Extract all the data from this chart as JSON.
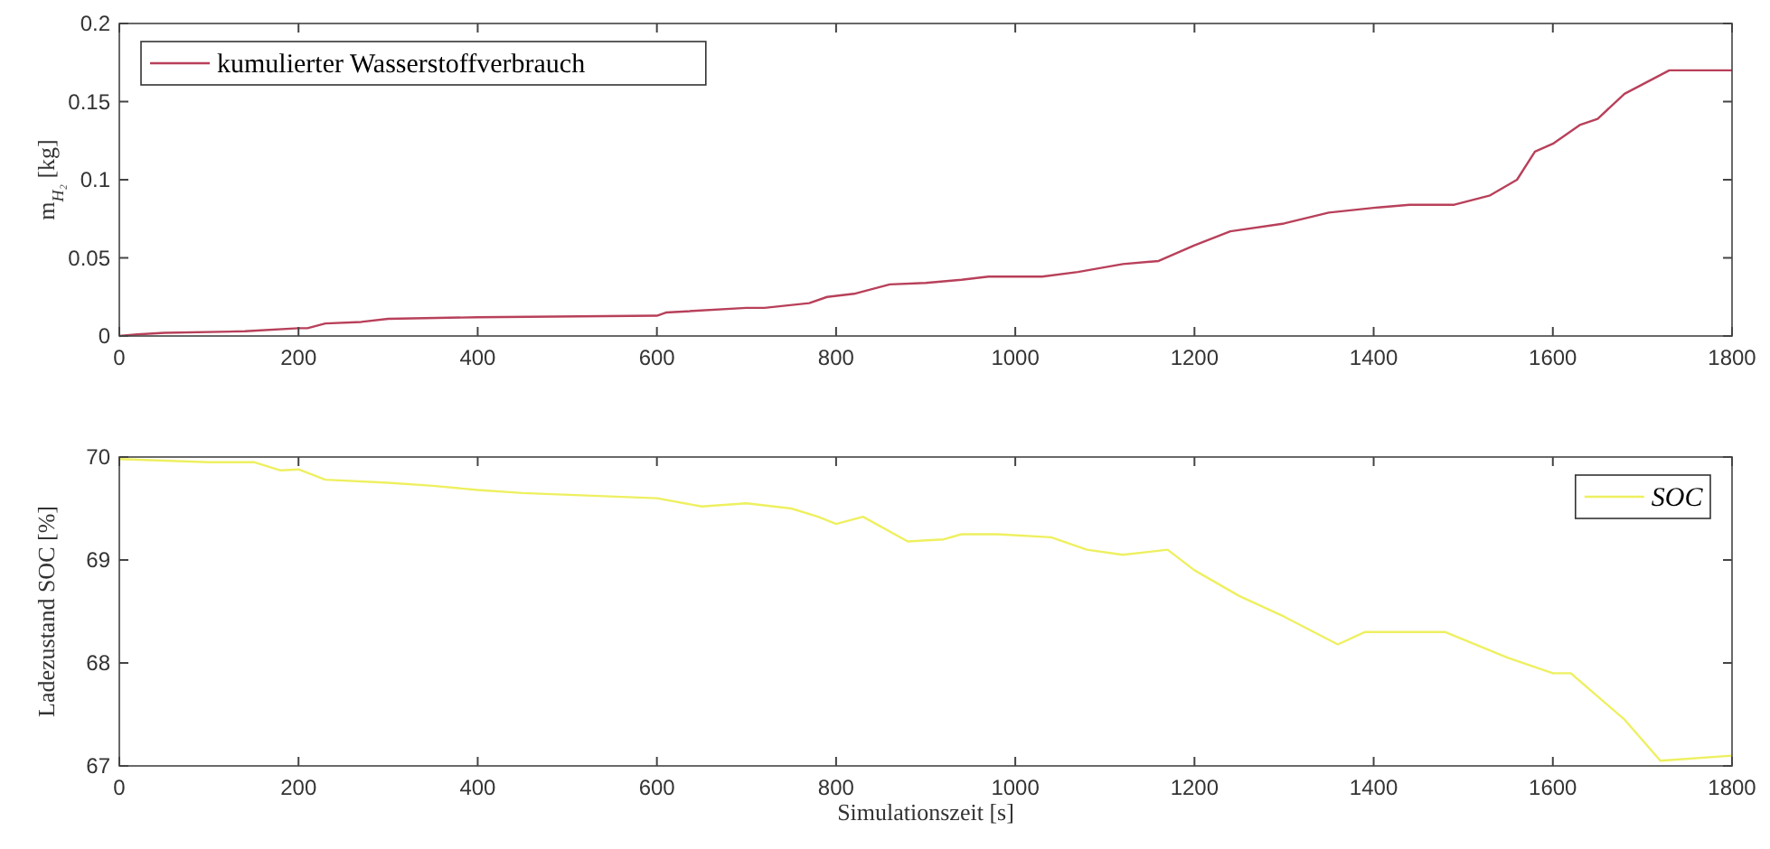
{
  "chart_data": [
    {
      "type": "line",
      "ylabel": "m$_{H₂}$ [kg]",
      "xlim": [
        0,
        1800
      ],
      "xticks": [
        0,
        200,
        400,
        600,
        800,
        1000,
        1200,
        1400,
        1600,
        1800
      ],
      "ylim": [
        0,
        0.2
      ],
      "yticks": [
        0,
        0.05,
        0.1,
        0.15,
        0.2
      ],
      "legend": "top left",
      "series": [
        {
          "name": "kumulierter Wasserstoffverbrauch",
          "color": "#b8405a",
          "x": [
            0,
            20,
            50,
            140,
            200,
            210,
            230,
            270,
            300,
            400,
            600,
            610,
            700,
            720,
            770,
            790,
            820,
            860,
            900,
            940,
            970,
            1030,
            1070,
            1120,
            1160,
            1200,
            1240,
            1300,
            1350,
            1400,
            1440,
            1490,
            1530,
            1560,
            1580,
            1600,
            1630,
            1650,
            1680,
            1730,
            1800
          ],
          "values": [
            0,
            0.001,
            0.002,
            0.003,
            0.005,
            0.005,
            0.008,
            0.009,
            0.011,
            0.012,
            0.013,
            0.015,
            0.018,
            0.018,
            0.021,
            0.025,
            0.027,
            0.033,
            0.034,
            0.036,
            0.038,
            0.038,
            0.041,
            0.046,
            0.048,
            0.058,
            0.067,
            0.072,
            0.079,
            0.082,
            0.084,
            0.084,
            0.09,
            0.1,
            0.118,
            0.123,
            0.135,
            0.139,
            0.155,
            0.17,
            0.17
          ]
        }
      ]
    },
    {
      "type": "line",
      "xlabel": "Simulationszeit [s]",
      "ylabel": "Ladezustand SOC [%]",
      "xlim": [
        0,
        1800
      ],
      "xticks": [
        0,
        200,
        400,
        600,
        800,
        1000,
        1200,
        1400,
        1600,
        1800
      ],
      "ylim": [
        67,
        70
      ],
      "yticks": [
        67,
        68,
        69,
        70
      ],
      "legend": "top right",
      "series": [
        {
          "name": "SOC",
          "color": "#eef060",
          "x": [
            0,
            100,
            150,
            180,
            200,
            230,
            300,
            350,
            400,
            450,
            600,
            650,
            700,
            750,
            780,
            800,
            830,
            880,
            920,
            940,
            980,
            1040,
            1080,
            1120,
            1170,
            1200,
            1250,
            1300,
            1360,
            1390,
            1480,
            1550,
            1600,
            1620,
            1680,
            1720,
            1800
          ],
          "values": [
            69.98,
            69.95,
            69.95,
            69.87,
            69.88,
            69.78,
            69.75,
            69.72,
            69.68,
            69.65,
            69.6,
            69.52,
            69.55,
            69.5,
            69.42,
            69.35,
            69.42,
            69.18,
            69.2,
            69.25,
            69.25,
            69.22,
            69.1,
            69.05,
            69.1,
            68.9,
            68.65,
            68.45,
            68.18,
            68.3,
            68.3,
            68.05,
            67.9,
            67.9,
            67.45,
            67.05,
            67.1
          ]
        }
      ]
    }
  ]
}
